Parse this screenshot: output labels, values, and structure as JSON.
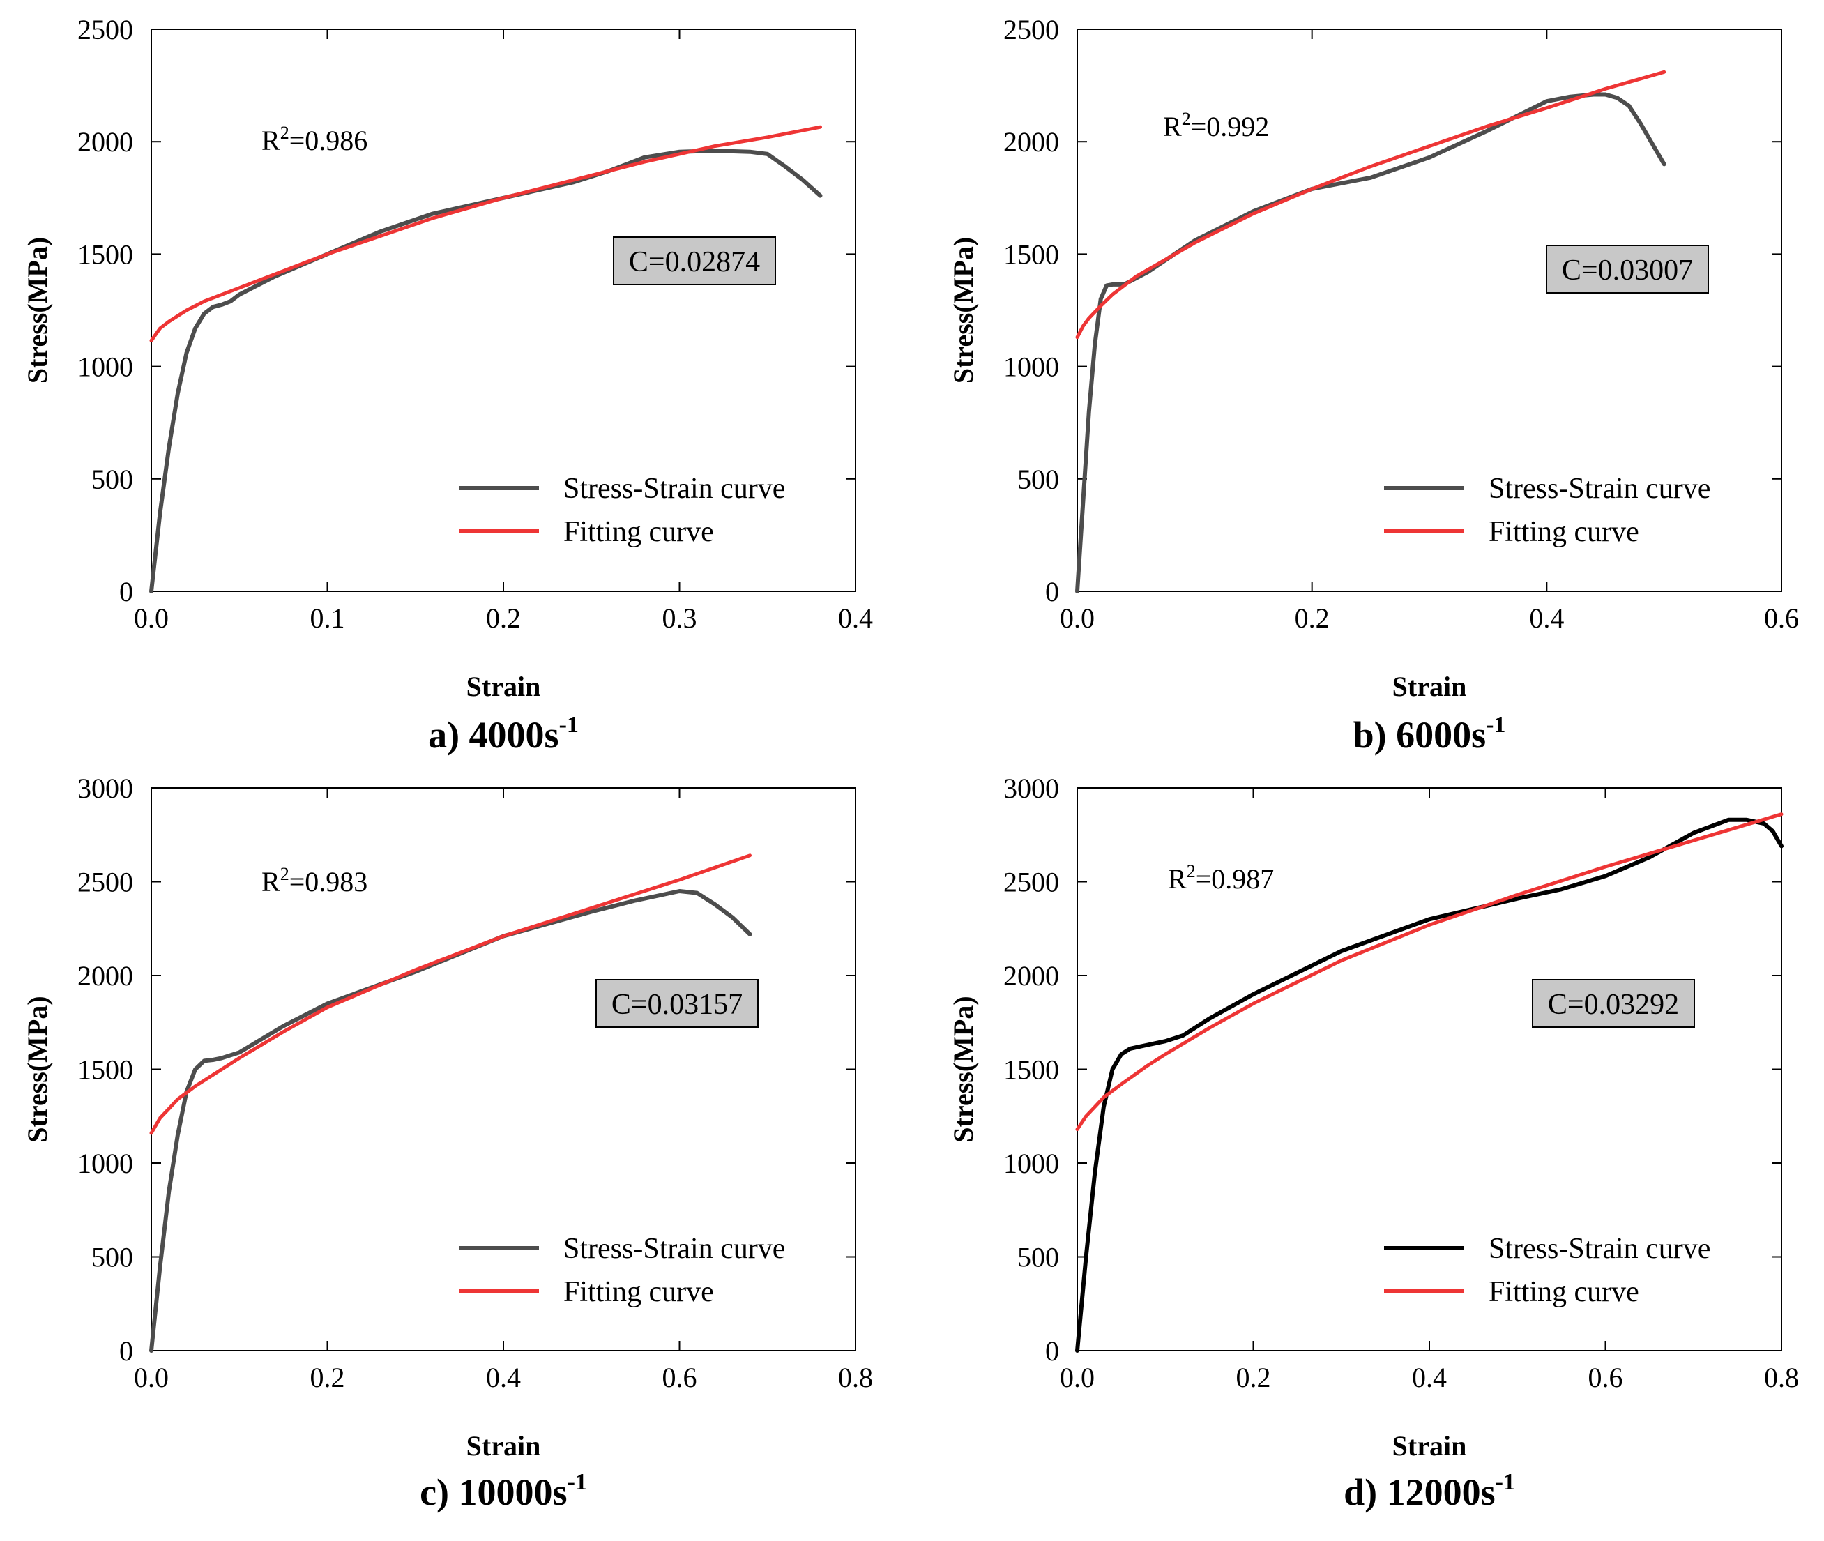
{
  "colors": {
    "fit": "#ee3535",
    "curve_gray": "#4d4d4d",
    "curve_black": "#000000",
    "cbox_fill": "#c8c8c8"
  },
  "chart_data": [
    {
      "type": "line",
      "panel": "a",
      "caption": "a) 4000s",
      "caption_sup": "-1",
      "xlabel": "Strain",
      "ylabel": "Stress(MPa)",
      "xlim": [
        0,
        0.4
      ],
      "ylim": [
        0,
        2500
      ],
      "xticks": [
        "0.0",
        "0.1",
        "0.2",
        "0.3",
        "0.4"
      ],
      "yticks": [
        "0",
        "500",
        "1000",
        "1500",
        "2000",
        "2500"
      ],
      "r2_label": "R",
      "r2_value": "=0.986",
      "c_label": "C=0.02874",
      "legend": [
        "Stress-Strain curve",
        "Fitting curve"
      ],
      "series": [
        {
          "name": "Stress-Strain curve",
          "color": "#4d4d4d",
          "x": [
            0,
            0.005,
            0.01,
            0.015,
            0.02,
            0.025,
            0.03,
            0.035,
            0.04,
            0.045,
            0.05,
            0.07,
            0.1,
            0.13,
            0.16,
            0.2,
            0.24,
            0.26,
            0.28,
            0.3,
            0.32,
            0.34,
            0.35,
            0.36,
            0.37,
            0.38
          ],
          "y": [
            0,
            350,
            640,
            880,
            1060,
            1170,
            1235,
            1265,
            1275,
            1290,
            1320,
            1400,
            1500,
            1600,
            1680,
            1750,
            1820,
            1870,
            1930,
            1955,
            1960,
            1955,
            1945,
            1890,
            1830,
            1760
          ]
        },
        {
          "name": "Fitting curve",
          "color": "#ee3535",
          "x": [
            0,
            0.005,
            0.01,
            0.02,
            0.03,
            0.05,
            0.07,
            0.1,
            0.13,
            0.16,
            0.2,
            0.24,
            0.28,
            0.32,
            0.35,
            0.38
          ],
          "y": [
            1115,
            1170,
            1200,
            1250,
            1290,
            1350,
            1410,
            1500,
            1580,
            1660,
            1750,
            1830,
            1910,
            1980,
            2020,
            2065
          ]
        }
      ]
    },
    {
      "type": "line",
      "panel": "b",
      "caption": "b) 6000s",
      "caption_sup": "-1",
      "xlabel": "Strain",
      "ylabel": "Stress(MPa)",
      "xlim": [
        0,
        0.6
      ],
      "ylim": [
        0,
        2500
      ],
      "xticks": [
        "0.0",
        "0.2",
        "0.4",
        "0.6"
      ],
      "yticks": [
        "0",
        "500",
        "1000",
        "1500",
        "2000",
        "2500"
      ],
      "r2_label": "R",
      "r2_value": "=0.992",
      "c_label": "C=0.03007",
      "legend": [
        "Stress-Strain curve",
        "Fitting curve"
      ],
      "series": [
        {
          "name": "Stress-Strain curve",
          "color": "#4d4d4d",
          "x": [
            0,
            0.005,
            0.01,
            0.015,
            0.02,
            0.025,
            0.03,
            0.04,
            0.06,
            0.1,
            0.15,
            0.2,
            0.25,
            0.3,
            0.35,
            0.4,
            0.42,
            0.44,
            0.45,
            0.46,
            0.47,
            0.48,
            0.49,
            0.5
          ],
          "y": [
            0,
            400,
            800,
            1100,
            1300,
            1360,
            1365,
            1365,
            1420,
            1560,
            1690,
            1790,
            1840,
            1930,
            2050,
            2180,
            2200,
            2210,
            2210,
            2195,
            2160,
            2080,
            1990,
            1900
          ]
        },
        {
          "name": "Fitting curve",
          "color": "#ee3535",
          "x": [
            0,
            0.005,
            0.01,
            0.02,
            0.03,
            0.05,
            0.08,
            0.1,
            0.15,
            0.2,
            0.25,
            0.3,
            0.35,
            0.4,
            0.45,
            0.5
          ],
          "y": [
            1130,
            1180,
            1215,
            1270,
            1320,
            1400,
            1490,
            1550,
            1680,
            1790,
            1890,
            1980,
            2070,
            2150,
            2235,
            2310
          ]
        }
      ]
    },
    {
      "type": "line",
      "panel": "c",
      "caption": "c) 10000s",
      "caption_sup": "-1",
      "xlabel": "Strain",
      "ylabel": "Stress(MPa)",
      "xlim": [
        0,
        0.8
      ],
      "ylim": [
        0,
        3000
      ],
      "xticks": [
        "0.0",
        "0.2",
        "0.4",
        "0.6",
        "0.8"
      ],
      "yticks": [
        "0",
        "500",
        "1000",
        "1500",
        "2000",
        "2500",
        "3000"
      ],
      "r2_label": "R",
      "r2_value": "=0.983",
      "c_label": "C=0.03157",
      "legend": [
        "Stress-Strain curve",
        "Fitting curve"
      ],
      "series": [
        {
          "name": "Stress-Strain curve",
          "color": "#4d4d4d",
          "x": [
            0,
            0.01,
            0.02,
            0.03,
            0.04,
            0.05,
            0.06,
            0.07,
            0.08,
            0.1,
            0.15,
            0.2,
            0.3,
            0.4,
            0.5,
            0.55,
            0.6,
            0.62,
            0.64,
            0.66,
            0.68
          ],
          "y": [
            0,
            450,
            850,
            1150,
            1380,
            1500,
            1545,
            1550,
            1560,
            1590,
            1730,
            1850,
            2020,
            2210,
            2340,
            2400,
            2450,
            2440,
            2380,
            2310,
            2220
          ]
        },
        {
          "name": "Fitting curve",
          "color": "#ee3535",
          "x": [
            0,
            0.01,
            0.02,
            0.03,
            0.05,
            0.08,
            0.1,
            0.15,
            0.2,
            0.3,
            0.4,
            0.5,
            0.6,
            0.68
          ],
          "y": [
            1160,
            1240,
            1290,
            1340,
            1410,
            1500,
            1560,
            1700,
            1830,
            2030,
            2210,
            2360,
            2510,
            2640
          ]
        }
      ]
    },
    {
      "type": "line",
      "panel": "d",
      "caption": "d) 12000s",
      "caption_sup": "-1",
      "xlabel": "Strain",
      "ylabel": "Stress(MPa)",
      "xlim": [
        0,
        0.8
      ],
      "ylim": [
        0,
        3000
      ],
      "xticks": [
        "0.0",
        "0.2",
        "0.4",
        "0.6",
        "0.8"
      ],
      "yticks": [
        "0",
        "500",
        "1000",
        "1500",
        "2000",
        "2500",
        "3000"
      ],
      "r2_label": "R",
      "r2_value": "=0.987",
      "c_label": "C=0.03292",
      "legend": [
        "Stress-Strain curve",
        "Fitting curve"
      ],
      "series": [
        {
          "name": "Stress-Strain curve",
          "color": "#000000",
          "x": [
            0,
            0.01,
            0.02,
            0.03,
            0.04,
            0.05,
            0.06,
            0.07,
            0.08,
            0.1,
            0.12,
            0.15,
            0.2,
            0.3,
            0.4,
            0.5,
            0.55,
            0.6,
            0.65,
            0.7,
            0.74,
            0.76,
            0.78,
            0.79,
            0.8
          ],
          "y": [
            0,
            500,
            950,
            1300,
            1500,
            1580,
            1610,
            1620,
            1630,
            1650,
            1680,
            1770,
            1900,
            2130,
            2300,
            2410,
            2460,
            2530,
            2630,
            2760,
            2830,
            2830,
            2810,
            2770,
            2690
          ]
        },
        {
          "name": "Fitting curve",
          "color": "#ee3535",
          "x": [
            0,
            0.01,
            0.02,
            0.03,
            0.05,
            0.08,
            0.1,
            0.15,
            0.2,
            0.3,
            0.4,
            0.5,
            0.6,
            0.7,
            0.8
          ],
          "y": [
            1180,
            1250,
            1300,
            1350,
            1420,
            1520,
            1580,
            1720,
            1850,
            2080,
            2270,
            2430,
            2580,
            2720,
            2860
          ]
        }
      ]
    }
  ]
}
